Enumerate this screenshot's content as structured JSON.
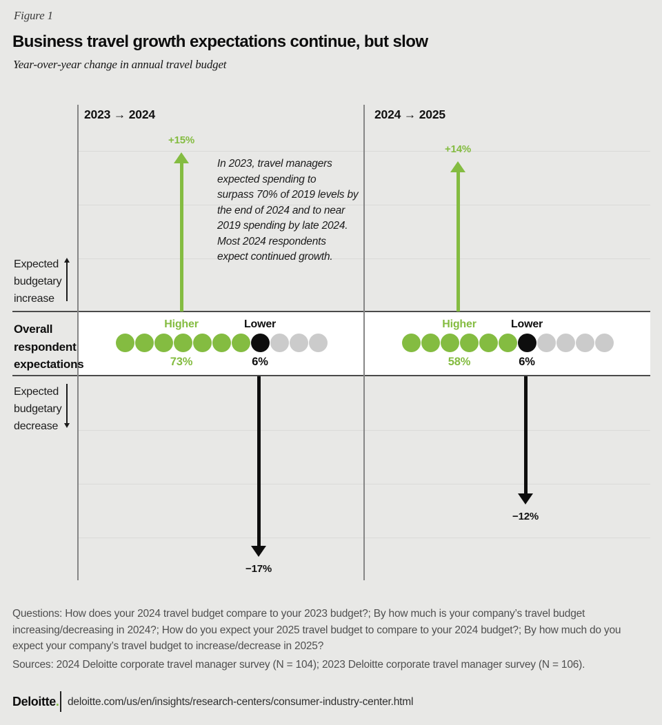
{
  "figure_label": "Figure 1",
  "title": "Business travel growth expectations continue, but slow",
  "subtitle": "Year-over-year change in annual travel budget",
  "colors": {
    "background": "#e8e8e6",
    "band_fill": "#ffffff",
    "band_border": "#4a4a4a",
    "axis": "#858585",
    "gridline": "#dadad8",
    "green_accent": "#84bc41",
    "black_accent": "#0e0e0e",
    "gray_dot": "#cbcbcb",
    "footer_text": "#4f4f4f"
  },
  "side_labels": {
    "increase": [
      "Expected",
      "budgetary",
      "increase"
    ],
    "band": [
      "Overall",
      "respondent",
      "expectations"
    ],
    "decrease": [
      "Expected",
      "budgetary",
      "decrease"
    ]
  },
  "annotation_lines": [
    "In 2023, travel managers",
    "expected spending to",
    "surpass 70% of 2019 levels by",
    "the end of 2024 and to near",
    "2019 spending by late 2024.",
    "Most 2024 respondents",
    "expect continued growth."
  ],
  "panels": [
    {
      "header": "2023 → 2024",
      "increase_pct": "+15%",
      "decrease_pct": "−17%",
      "higher_label": "Higher",
      "lower_label": "Lower",
      "higher_pct": "73%",
      "lower_pct": "6%",
      "dots": {
        "green": 7,
        "black": 1,
        "gray": 3
      }
    },
    {
      "header": "2024 → 2025",
      "increase_pct": "+14%",
      "decrease_pct": "−12%",
      "higher_label": "Higher",
      "lower_label": "Lower",
      "higher_pct": "58%",
      "lower_pct": "6%",
      "dots": {
        "green": 6,
        "black": 1,
        "gray": 4
      }
    }
  ],
  "chart_data": {
    "type": "bar",
    "subtype": "diverging-arrow-pictograph",
    "title": "Business travel growth expectations continue, but slow",
    "subtitle": "Year-over-year change in annual travel budget",
    "categories": [
      "2023 → 2024",
      "2024 → 2025"
    ],
    "series": [
      {
        "name": "Expected budgetary increase (avg % change)",
        "values": [
          15,
          14
        ]
      },
      {
        "name": "Expected budgetary decrease (avg % change)",
        "values": [
          -17,
          -12
        ]
      },
      {
        "name": "Respondents expecting higher budget (%)",
        "values": [
          73,
          58
        ]
      },
      {
        "name": "Respondents expecting lower budget (%)",
        "values": [
          6,
          6
        ]
      }
    ],
    "dot_counts": [
      {
        "green": 7,
        "black": 1,
        "gray": 3,
        "total": 11
      },
      {
        "green": 6,
        "black": 1,
        "gray": 4,
        "total": 11
      }
    ],
    "axis_band_label": "Overall respondent expectations",
    "up_axis_label": "Expected budgetary increase",
    "down_axis_label": "Expected budgetary decrease",
    "grid": true,
    "gridline_step_pct": 5,
    "annotation": "In 2023, travel managers expected spending to surpass 70% of 2019 levels by the end of 2024 and to near 2019 spending by late 2024. Most 2024 respondents expect continued growth."
  },
  "footer": {
    "questions": "Questions: How does your 2024 travel budget compare to your 2023 budget?; By how much is your company’s travel budget increasing/decreasing in 2024?; How do you expect your 2025 travel budget to compare to your 2024 budget?; By how much do you expect your company’s travel budget to increase/decrease in 2025?",
    "sources": "Sources: 2024 Deloitte corporate travel manager survey (N = 104); 2023 Deloitte corporate travel manager survey (N = 106).",
    "logo_text": "Deloitte",
    "logo_period": ".",
    "url": "deloitte.com/us/en/insights/research-centers/consumer-industry-center.html"
  }
}
